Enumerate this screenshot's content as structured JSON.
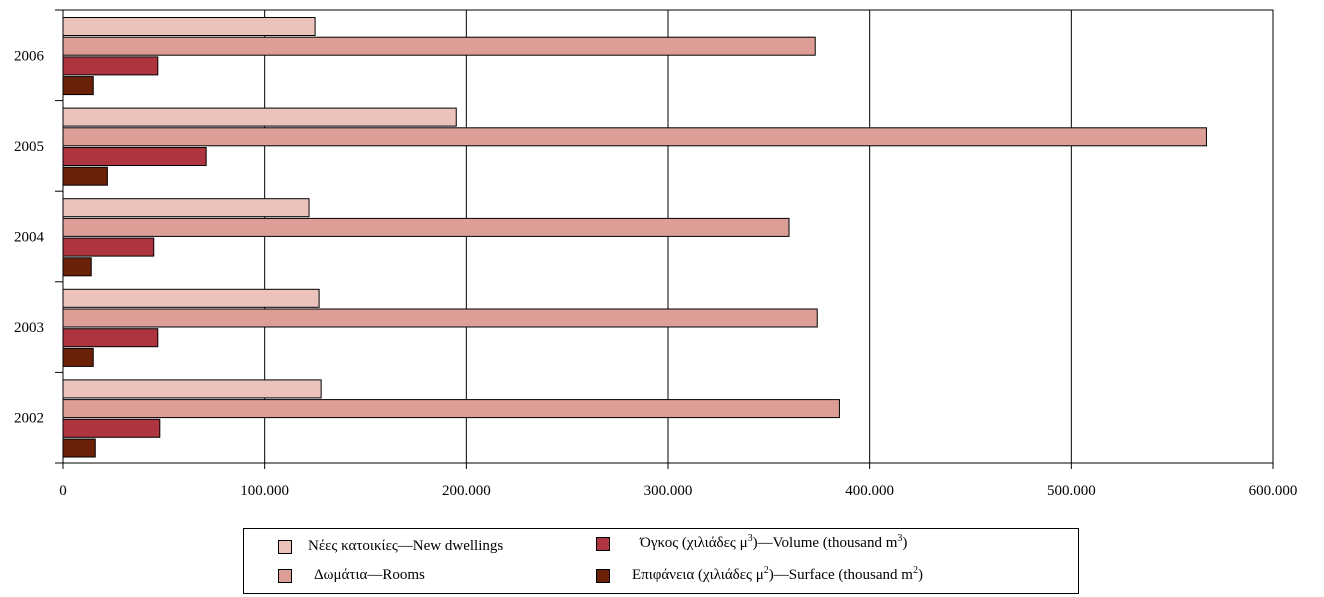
{
  "chart_data": {
    "type": "bar",
    "orientation": "horizontal",
    "title": "",
    "xlabel": "",
    "ylabel": "",
    "categories": [
      "2002",
      "2003",
      "2004",
      "2005",
      "2006"
    ],
    "series": [
      {
        "name": "Νέες κατοικίες—New dwellings",
        "color": "#ecc3bc",
        "values": [
          128000,
          127000,
          122000,
          195000,
          125000
        ]
      },
      {
        "name": "Δωμάτια—Rooms",
        "color": "#dc9e96",
        "values": [
          385000,
          374000,
          360000,
          567000,
          373000
        ]
      },
      {
        "name": "Όγκος (χιλιάδες μ3)—Volume (thousand m3)",
        "color": "#ae3540",
        "values": [
          48000,
          47000,
          45000,
          71000,
          47000
        ]
      },
      {
        "name": "Επιφάνεια (χιλιάδες μ2)—Surface (thousand m2)",
        "color": "#6b2108",
        "values": [
          16000,
          15000,
          14000,
          22000,
          15000
        ]
      }
    ],
    "xlim": [
      0,
      600000
    ],
    "x_ticks": [
      "0",
      "100.000",
      "200.000",
      "300.000",
      "400.000",
      "500.000",
      "600.000"
    ],
    "grid": "vertical",
    "legend_position": "bottom"
  },
  "legend": {
    "dwellings": "Νέες κατοικίες—New dwellings",
    "rooms": "Δωμάτια—Rooms",
    "volume_pre": "Όγκος (χιλιάδες μ",
    "volume_sup1": "3",
    "volume_mid": ")—Volume (thousand m",
    "volume_sup2": "3",
    "volume_post": ")",
    "surface_pre": "Επιφάνεια (χιλιάδες μ",
    "surface_sup1": "2",
    "surface_mid": ")—Surface (thousand m",
    "surface_sup2": "2",
    "surface_post": ")"
  }
}
